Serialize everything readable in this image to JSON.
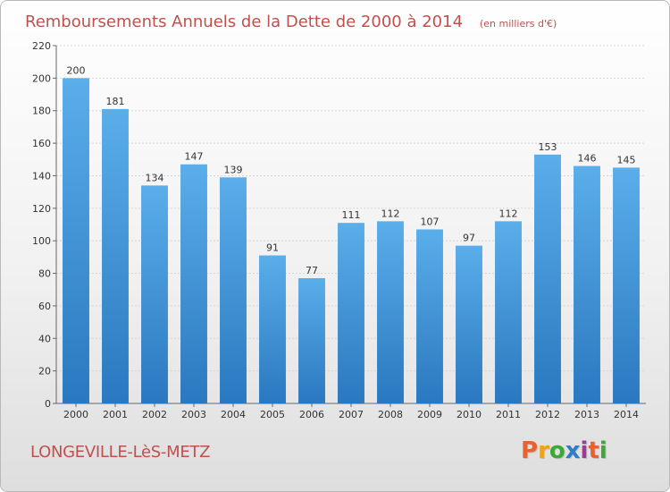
{
  "chart_data": {
    "type": "bar",
    "title": "Remboursements Annuels de la Dette de 2000 à 2014",
    "unit_note": "(en milliers d'€)",
    "categories": [
      "2000",
      "2001",
      "2002",
      "2003",
      "2004",
      "2005",
      "2006",
      "2007",
      "2008",
      "2009",
      "2010",
      "2011",
      "2012",
      "2013",
      "2014"
    ],
    "values": [
      200,
      181,
      134,
      147,
      139,
      91,
      77,
      111,
      112,
      107,
      97,
      112,
      153,
      146,
      145
    ],
    "ylim": [
      0,
      220
    ],
    "yticks": [
      0,
      20,
      40,
      60,
      80,
      100,
      120,
      140,
      160,
      180,
      200,
      220
    ],
    "xlabel": "",
    "ylabel": "",
    "grid": true,
    "bar_color": "#3d8fd6"
  },
  "footer": {
    "city": "LONGEVILLE-LèS-METZ",
    "logo_text": "Proxiti",
    "logo_colors": [
      "#e8632b",
      "#f2a30f",
      "#3aa935",
      "#2f7cc7",
      "#9c3c96",
      "#e8632b",
      "#3aa935"
    ]
  }
}
